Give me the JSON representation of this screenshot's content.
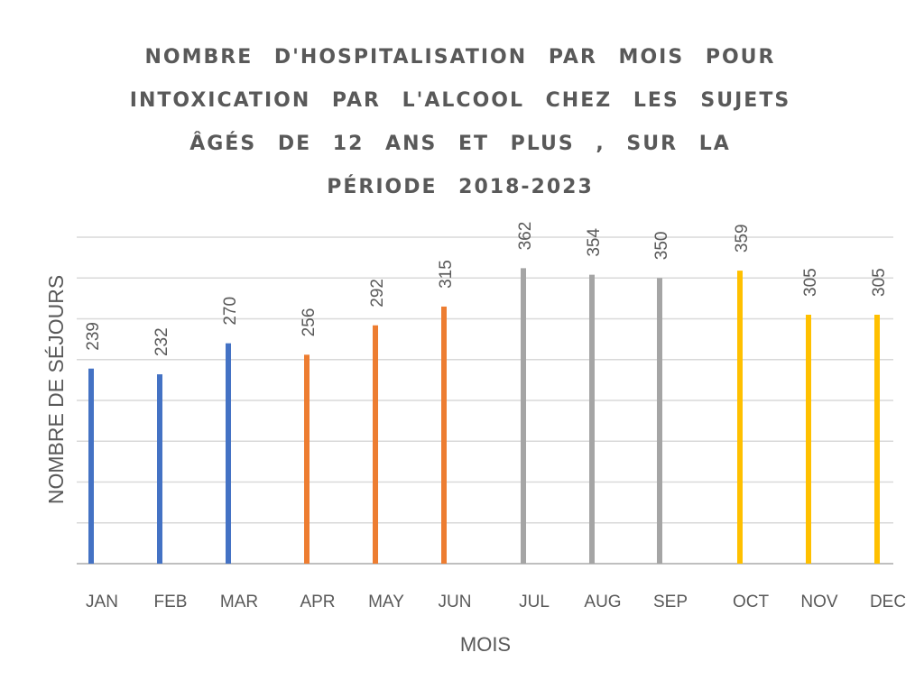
{
  "chart_data": {
    "type": "bar",
    "title_lines": [
      "NOMBRE D'HOSPITALISATION PAR MOIS POUR",
      "INTOXICATION PAR L'ALCOOL CHEZ LES SUJETS",
      "ÂGÉS DE 12 ANS ET PLUS , SUR LA",
      "PÉRIODE 2018-2023"
    ],
    "xlabel": "MOIS",
    "ylabel": "NOMBRE DE SÉJOURS",
    "categories": [
      "JAN",
      "FEB",
      "MAR",
      "APR",
      "MAY",
      "JUN",
      "JUL",
      "AUG",
      "SEP",
      "OCT",
      "NOV",
      "DEC"
    ],
    "values": [
      239,
      232,
      270,
      256,
      292,
      315,
      362,
      354,
      350,
      359,
      305,
      305
    ],
    "data_labels": [
      "239",
      "232",
      "270",
      "256",
      "292",
      "315",
      "362",
      "354",
      "350",
      "359",
      "305",
      "305"
    ],
    "colors": [
      "#4472C4",
      "#4472C4",
      "#4472C4",
      "#ED7D31",
      "#ED7D31",
      "#ED7D31",
      "#A5A5A5",
      "#A5A5A5",
      "#A5A5A5",
      "#FFC000",
      "#FFC000",
      "#FFC000"
    ],
    "ylim": [
      0,
      400
    ],
    "grid": true,
    "y_tick_labels_visible": false
  }
}
